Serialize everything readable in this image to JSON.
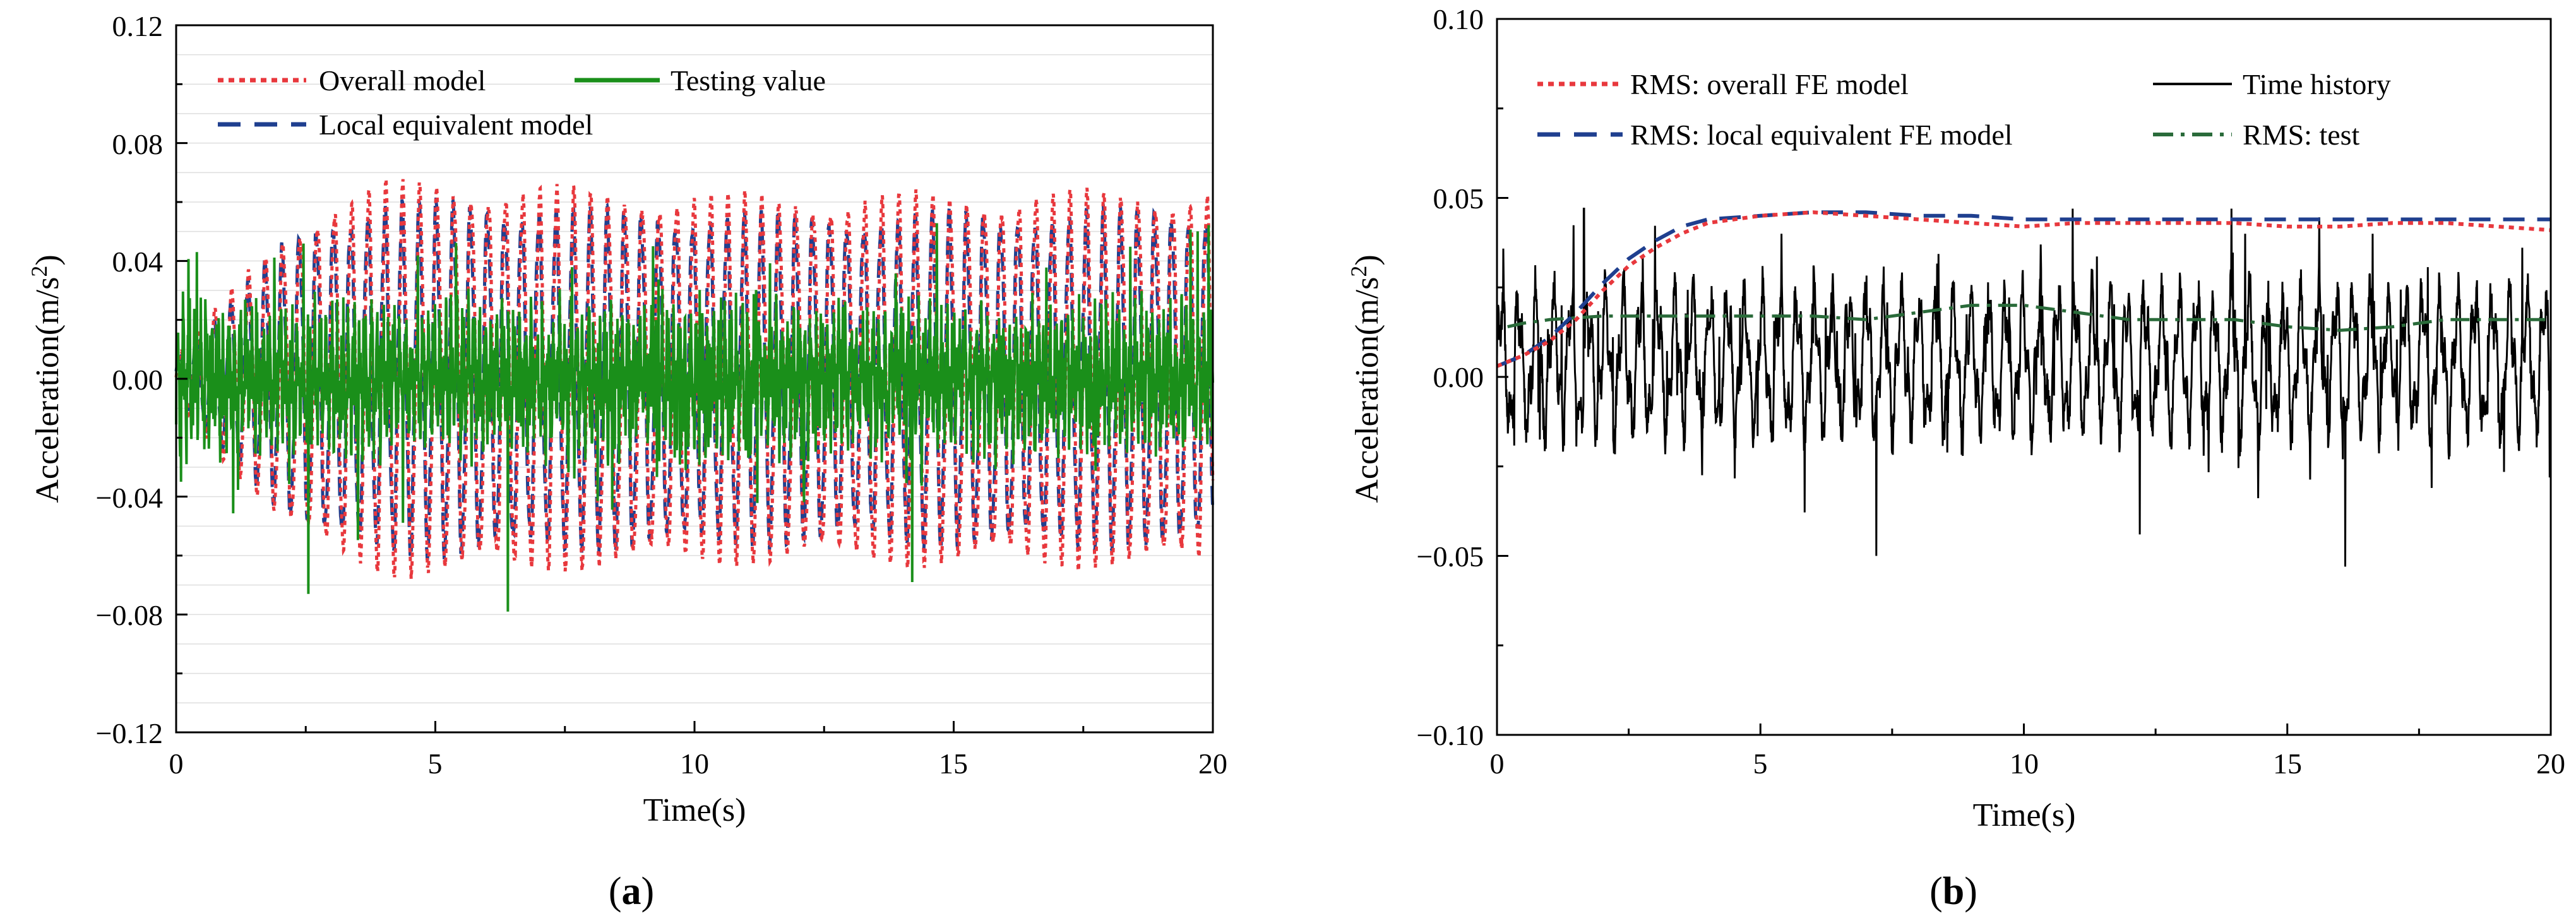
{
  "colors": {
    "overall": "#e8383d",
    "local": "#1f3f8f",
    "testing": "#1a8f1a",
    "history": "#000000",
    "rms_test": "#2a6b3a"
  },
  "chart_data": [
    {
      "type": "line",
      "caption_open": "(",
      "caption_letter": "a",
      "caption_close": ")",
      "xlabel": "Time(s)",
      "ylabel": "Acceleration(m/s²)",
      "ylabel_main": "Acceleration(m/s",
      "ylabel_sup": "2",
      "ylabel_end": ")",
      "xlim": [
        0,
        20
      ],
      "ylim": [
        -0.12,
        0.12
      ],
      "xticks": [
        0,
        5,
        10,
        15,
        20
      ],
      "xtick_labels": [
        "0",
        "5",
        "10",
        "15",
        "20"
      ],
      "yticks": [
        -0.12,
        -0.08,
        -0.04,
        0.0,
        0.04,
        0.08,
        0.12
      ],
      "ytick_labels": [
        "−0.12",
        "−0.08",
        "−0.04",
        "0.00",
        "0.04",
        "0.08",
        "0.12"
      ],
      "legend_position": "top-left",
      "series": [
        {
          "name": "Overall model",
          "style": "dotted",
          "envelope": {
            "t": [
              0,
              1,
              2,
              3,
              4,
              5,
              8,
              12,
              16,
              20
            ],
            "amp": [
              0.008,
              0.03,
              0.05,
              0.062,
              0.068,
              0.069,
              0.066,
              0.064,
              0.065,
              0.066
            ]
          },
          "period_s": 0.33
        },
        {
          "name": "Local equivalent model",
          "style": "dashed",
          "envelope": {
            "t": [
              0,
              1,
              2,
              3,
              4,
              5,
              8,
              12,
              16,
              20
            ],
            "amp": [
              0.007,
              0.027,
              0.047,
              0.058,
              0.062,
              0.063,
              0.06,
              0.058,
              0.059,
              0.06
            ]
          },
          "period_s": 0.33
        },
        {
          "name": "Testing value",
          "style": "solid",
          "amplitude_range": [
            -0.079,
            0.06
          ],
          "peaks": [
            {
              "t": 2.55,
              "value": -0.073
            },
            {
              "t": 6.4,
              "value": -0.079
            },
            {
              "t": 14.2,
              "value": -0.069
            },
            {
              "t": 0.4,
              "value": 0.043
            },
            {
              "t": 9.2,
              "value": 0.045
            }
          ]
        }
      ]
    },
    {
      "type": "line",
      "caption_open": "(",
      "caption_letter": "b",
      "caption_close": ")",
      "xlabel": "Time(s)",
      "ylabel": "Acceleration(m/s²)",
      "ylabel_main": "Acceleration(m/s",
      "ylabel_sup": "2",
      "ylabel_end": ")",
      "xlim": [
        0,
        20
      ],
      "ylim": [
        -0.1,
        0.1
      ],
      "xticks": [
        0,
        5,
        10,
        15,
        20
      ],
      "xtick_labels": [
        "0",
        "5",
        "10",
        "15",
        "20"
      ],
      "yticks": [
        -0.1,
        -0.05,
        0.0,
        0.05,
        0.1
      ],
      "ytick_labels": [
        "−0.10",
        "−0.05",
        "0.00",
        "0.05",
        "0.10"
      ],
      "legend_position": "top",
      "series": [
        {
          "name": "RMS: overall FE model",
          "style": "dotted",
          "x": [
            0,
            0.5,
            1,
            1.5,
            2,
            2.5,
            3,
            3.5,
            4,
            5,
            6,
            7,
            8,
            9,
            10,
            11,
            12,
            13,
            14,
            15,
            16,
            17,
            18,
            19,
            20
          ],
          "y": [
            0.003,
            0.006,
            0.01,
            0.016,
            0.024,
            0.031,
            0.036,
            0.04,
            0.043,
            0.045,
            0.046,
            0.045,
            0.044,
            0.043,
            0.042,
            0.043,
            0.043,
            0.043,
            0.043,
            0.042,
            0.042,
            0.043,
            0.043,
            0.042,
            0.041
          ]
        },
        {
          "name": "RMS: local equivalent FE model",
          "style": "dashed",
          "x": [
            0,
            0.5,
            1,
            1.5,
            2,
            2.5,
            3,
            3.5,
            4,
            5,
            6,
            7,
            8,
            9,
            10,
            11,
            12,
            13,
            14,
            15,
            16,
            17,
            18,
            19,
            20
          ],
          "y": [
            0.003,
            0.006,
            0.011,
            0.018,
            0.026,
            0.033,
            0.038,
            0.042,
            0.044,
            0.045,
            0.046,
            0.046,
            0.045,
            0.045,
            0.044,
            0.044,
            0.044,
            0.044,
            0.044,
            0.044,
            0.044,
            0.044,
            0.044,
            0.044,
            0.044
          ]
        },
        {
          "name": "Time history",
          "style": "solid",
          "amplitude_range": [
            -0.053,
            0.047
          ],
          "peaks": [
            {
              "t": 1.65,
              "value": 0.047
            },
            {
              "t": 7.2,
              "value": -0.05
            },
            {
              "t": 12.2,
              "value": -0.044
            },
            {
              "t": 16.1,
              "value": -0.053
            },
            {
              "t": 14.2,
              "value": 0.04
            }
          ]
        },
        {
          "name": "RMS: test",
          "style": "dashdot",
          "x": [
            0.2,
            0.5,
            1,
            2,
            3,
            4,
            5,
            6,
            7,
            8,
            9,
            10,
            11,
            12,
            13,
            14,
            15,
            16,
            17,
            18,
            19,
            20
          ],
          "y": [
            0.014,
            0.015,
            0.016,
            0.017,
            0.017,
            0.017,
            0.017,
            0.017,
            0.016,
            0.018,
            0.02,
            0.02,
            0.018,
            0.016,
            0.016,
            0.016,
            0.014,
            0.013,
            0.014,
            0.016,
            0.016,
            0.016
          ]
        }
      ]
    }
  ]
}
